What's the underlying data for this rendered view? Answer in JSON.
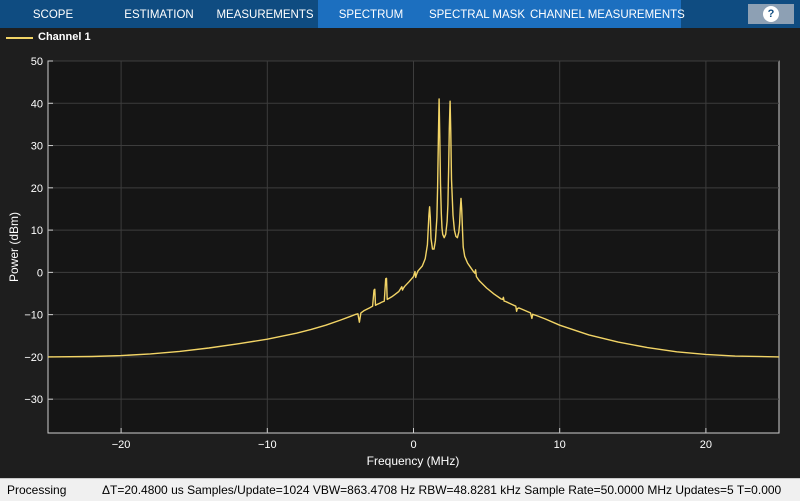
{
  "toolstrip": {
    "tabs": [
      {
        "label": "SCOPE",
        "name": "tab-scope"
      },
      {
        "label": "ESTIMATION",
        "name": "tab-estimation"
      },
      {
        "label": "MEASUREMENTS",
        "name": "tab-measurements"
      },
      {
        "label": "SPECTRUM",
        "name": "tab-spectrum"
      },
      {
        "label": "SPECTRAL MASK",
        "name": "tab-spectral-mask"
      },
      {
        "label": "CHANNEL MEASUREMENTS",
        "name": "tab-channel-measurements"
      }
    ],
    "help_label": "?",
    "colors": {
      "bar": "#0f4c81",
      "section": "#1c6fbf"
    }
  },
  "legend": {
    "label": "Channel 1",
    "color": "#f2d466"
  },
  "chart_data": {
    "type": "line",
    "title": "",
    "xlabel": "Frequency (MHz)",
    "ylabel": "Power (dBm)",
    "xlim": [
      -25,
      25
    ],
    "ylim": [
      -38,
      50
    ],
    "xticks": [
      -20,
      -10,
      0,
      10,
      20
    ],
    "yticks": [
      50,
      40,
      30,
      20,
      10,
      0,
      -10,
      -20,
      -30
    ],
    "grid": true,
    "legend_position": "top-left",
    "series": [
      {
        "name": "Channel 1",
        "color": "#f2d466",
        "x": [
          -25,
          -22,
          -20,
          -18,
          -16,
          -14,
          -12,
          -10,
          -8,
          -7,
          -6,
          -5,
          -4.3,
          -4.0,
          -3.8,
          -3.7,
          -3.6,
          -3.4,
          -3.0,
          -2.8,
          -2.7,
          -2.65,
          -2.6,
          -2.5,
          -2.3,
          -2.2,
          -2.0,
          -1.9,
          -1.85,
          -1.8,
          -1.7,
          -1.5,
          -1.3,
          -1.0,
          -0.8,
          -0.75,
          -0.7,
          -0.6,
          -0.3,
          0.0,
          0.1,
          0.15,
          0.2,
          0.3,
          0.6,
          0.8,
          0.95,
          1.05,
          1.1,
          1.15,
          1.2,
          1.3,
          1.4,
          1.5,
          1.6,
          1.65,
          1.7,
          1.75,
          1.8,
          1.85,
          1.9,
          1.95,
          2.0,
          2.1,
          2.2,
          2.3,
          2.35,
          2.4,
          2.45,
          2.5,
          2.55,
          2.6,
          2.7,
          2.8,
          2.9,
          3.0,
          3.1,
          3.15,
          3.2,
          3.25,
          3.3,
          3.35,
          3.4,
          3.5,
          3.7,
          3.9,
          4.1,
          4.2,
          4.25,
          4.3,
          4.5,
          5,
          5.5,
          6.0,
          6.1,
          6.15,
          6.2,
          6.3,
          6.8,
          7.0,
          7.05,
          7.1,
          7.2,
          8.0,
          8.1,
          8.15,
          8.2,
          8.4,
          9,
          10,
          12,
          14,
          16,
          18,
          20,
          22,
          25
        ],
        "values": [
          -20,
          -19.9,
          -19.7,
          -19.3,
          -18.7,
          -17.9,
          -16.9,
          -15.8,
          -14.4,
          -13.5,
          -12.5,
          -11.3,
          -10.4,
          -10.0,
          -9.8,
          -11.8,
          -9.6,
          -9.1,
          -8.4,
          -8.0,
          -4.2,
          -4.0,
          -7.8,
          -7.6,
          -7.3,
          -7.1,
          -6.8,
          -1.5,
          -1.4,
          -6.4,
          -6.2,
          -5.8,
          -5.3,
          -4.5,
          -3.4,
          -4.2,
          -3.8,
          -3.3,
          -2.2,
          -1.0,
          0.2,
          -1.2,
          -0.6,
          0.3,
          1.5,
          3.2,
          6.5,
          13.5,
          15.5,
          13.0,
          8.0,
          5.5,
          5.5,
          7.5,
          13.0,
          20.0,
          32.0,
          41.0,
          32.0,
          21.0,
          14.0,
          10.5,
          9.0,
          8.2,
          9.0,
          12.0,
          16.0,
          24.0,
          34.0,
          40.5,
          33.0,
          22.0,
          13.5,
          10.0,
          8.5,
          8.2,
          9.5,
          11.5,
          15.0,
          17.5,
          15.0,
          10.0,
          6.0,
          3.8,
          2.2,
          1.2,
          0.2,
          -0.2,
          0.6,
          -1.0,
          -2.0,
          -3.7,
          -5.1,
          -6.3,
          -6.4,
          -5.9,
          -6.8,
          -6.9,
          -7.7,
          -8.0,
          -9.2,
          -8.6,
          -8.4,
          -9.6,
          -10.9,
          -9.9,
          -10.0,
          -10.2,
          -11.0,
          -12.5,
          -14.8,
          -16.5,
          -17.8,
          -18.8,
          -19.4,
          -19.8,
          -20
        ]
      }
    ]
  },
  "status": {
    "left": "Processing",
    "right": "ΔT=20.4800 us  Samples/Update=1024  VBW=863.4708 Hz  RBW=48.8281 kHz  Sample Rate=50.0000 MHz  Updates=5  T=0.000"
  }
}
